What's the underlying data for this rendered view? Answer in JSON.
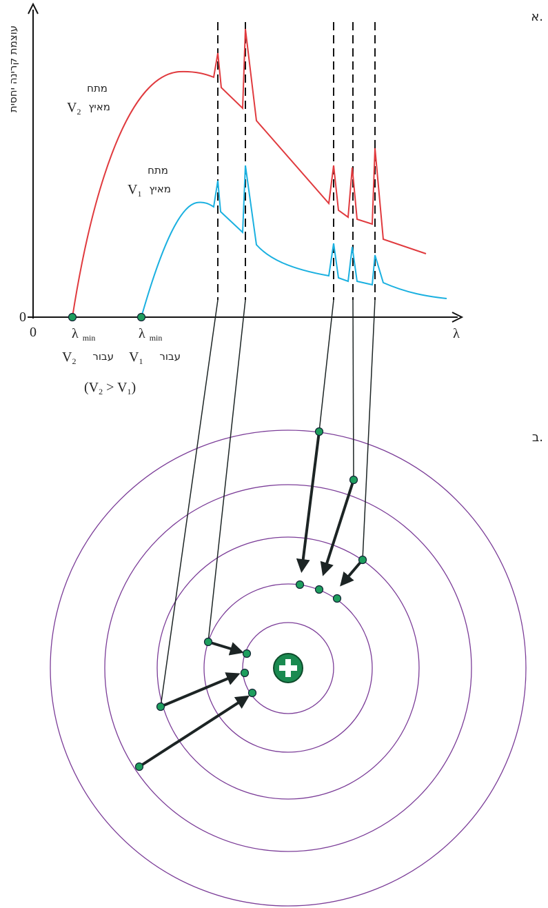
{
  "labels": {
    "part_a": "א.",
    "part_b": "ב."
  },
  "graph": {
    "y_axis_label": "עוצמת קרינה יחסית",
    "y_origin": "0",
    "x_origin": "0",
    "x_axis_label": "λ",
    "curves": [
      {
        "voltage": "מתח",
        "accelerating": "מאיץ",
        "symbol": "V",
        "subscript": "2"
      },
      {
        "voltage": "מתח",
        "accelerating": "מאיץ",
        "symbol": "V",
        "subscript": "1"
      }
    ],
    "lambda_min": [
      {
        "symbol": "λ",
        "subscript": "min",
        "for": "עבור",
        "voltage": "V",
        "voltage_subscript": "2"
      },
      {
        "symbol": "λ",
        "subscript": "min",
        "for": "עבור",
        "voltage": "V",
        "voltage_subscript": "1"
      }
    ],
    "condition": {
      "left": "(V",
      "left_sub": "2",
      "middle": " > V",
      "right_sub": "1",
      "right": ")"
    }
  }
}
